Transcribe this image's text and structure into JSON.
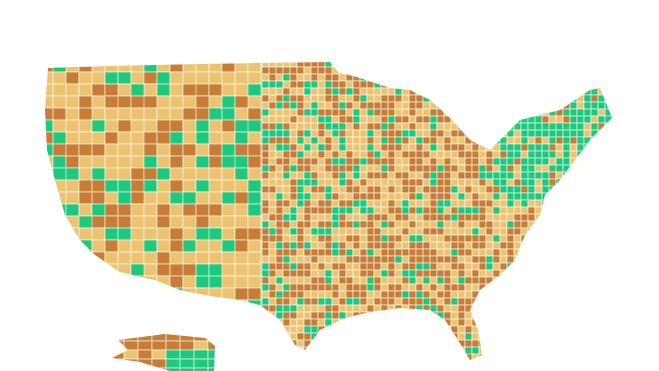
{
  "map": {
    "colors": [
      "#1ec87c",
      "#ecc471",
      "#c77d35"
    ]
  }
}
